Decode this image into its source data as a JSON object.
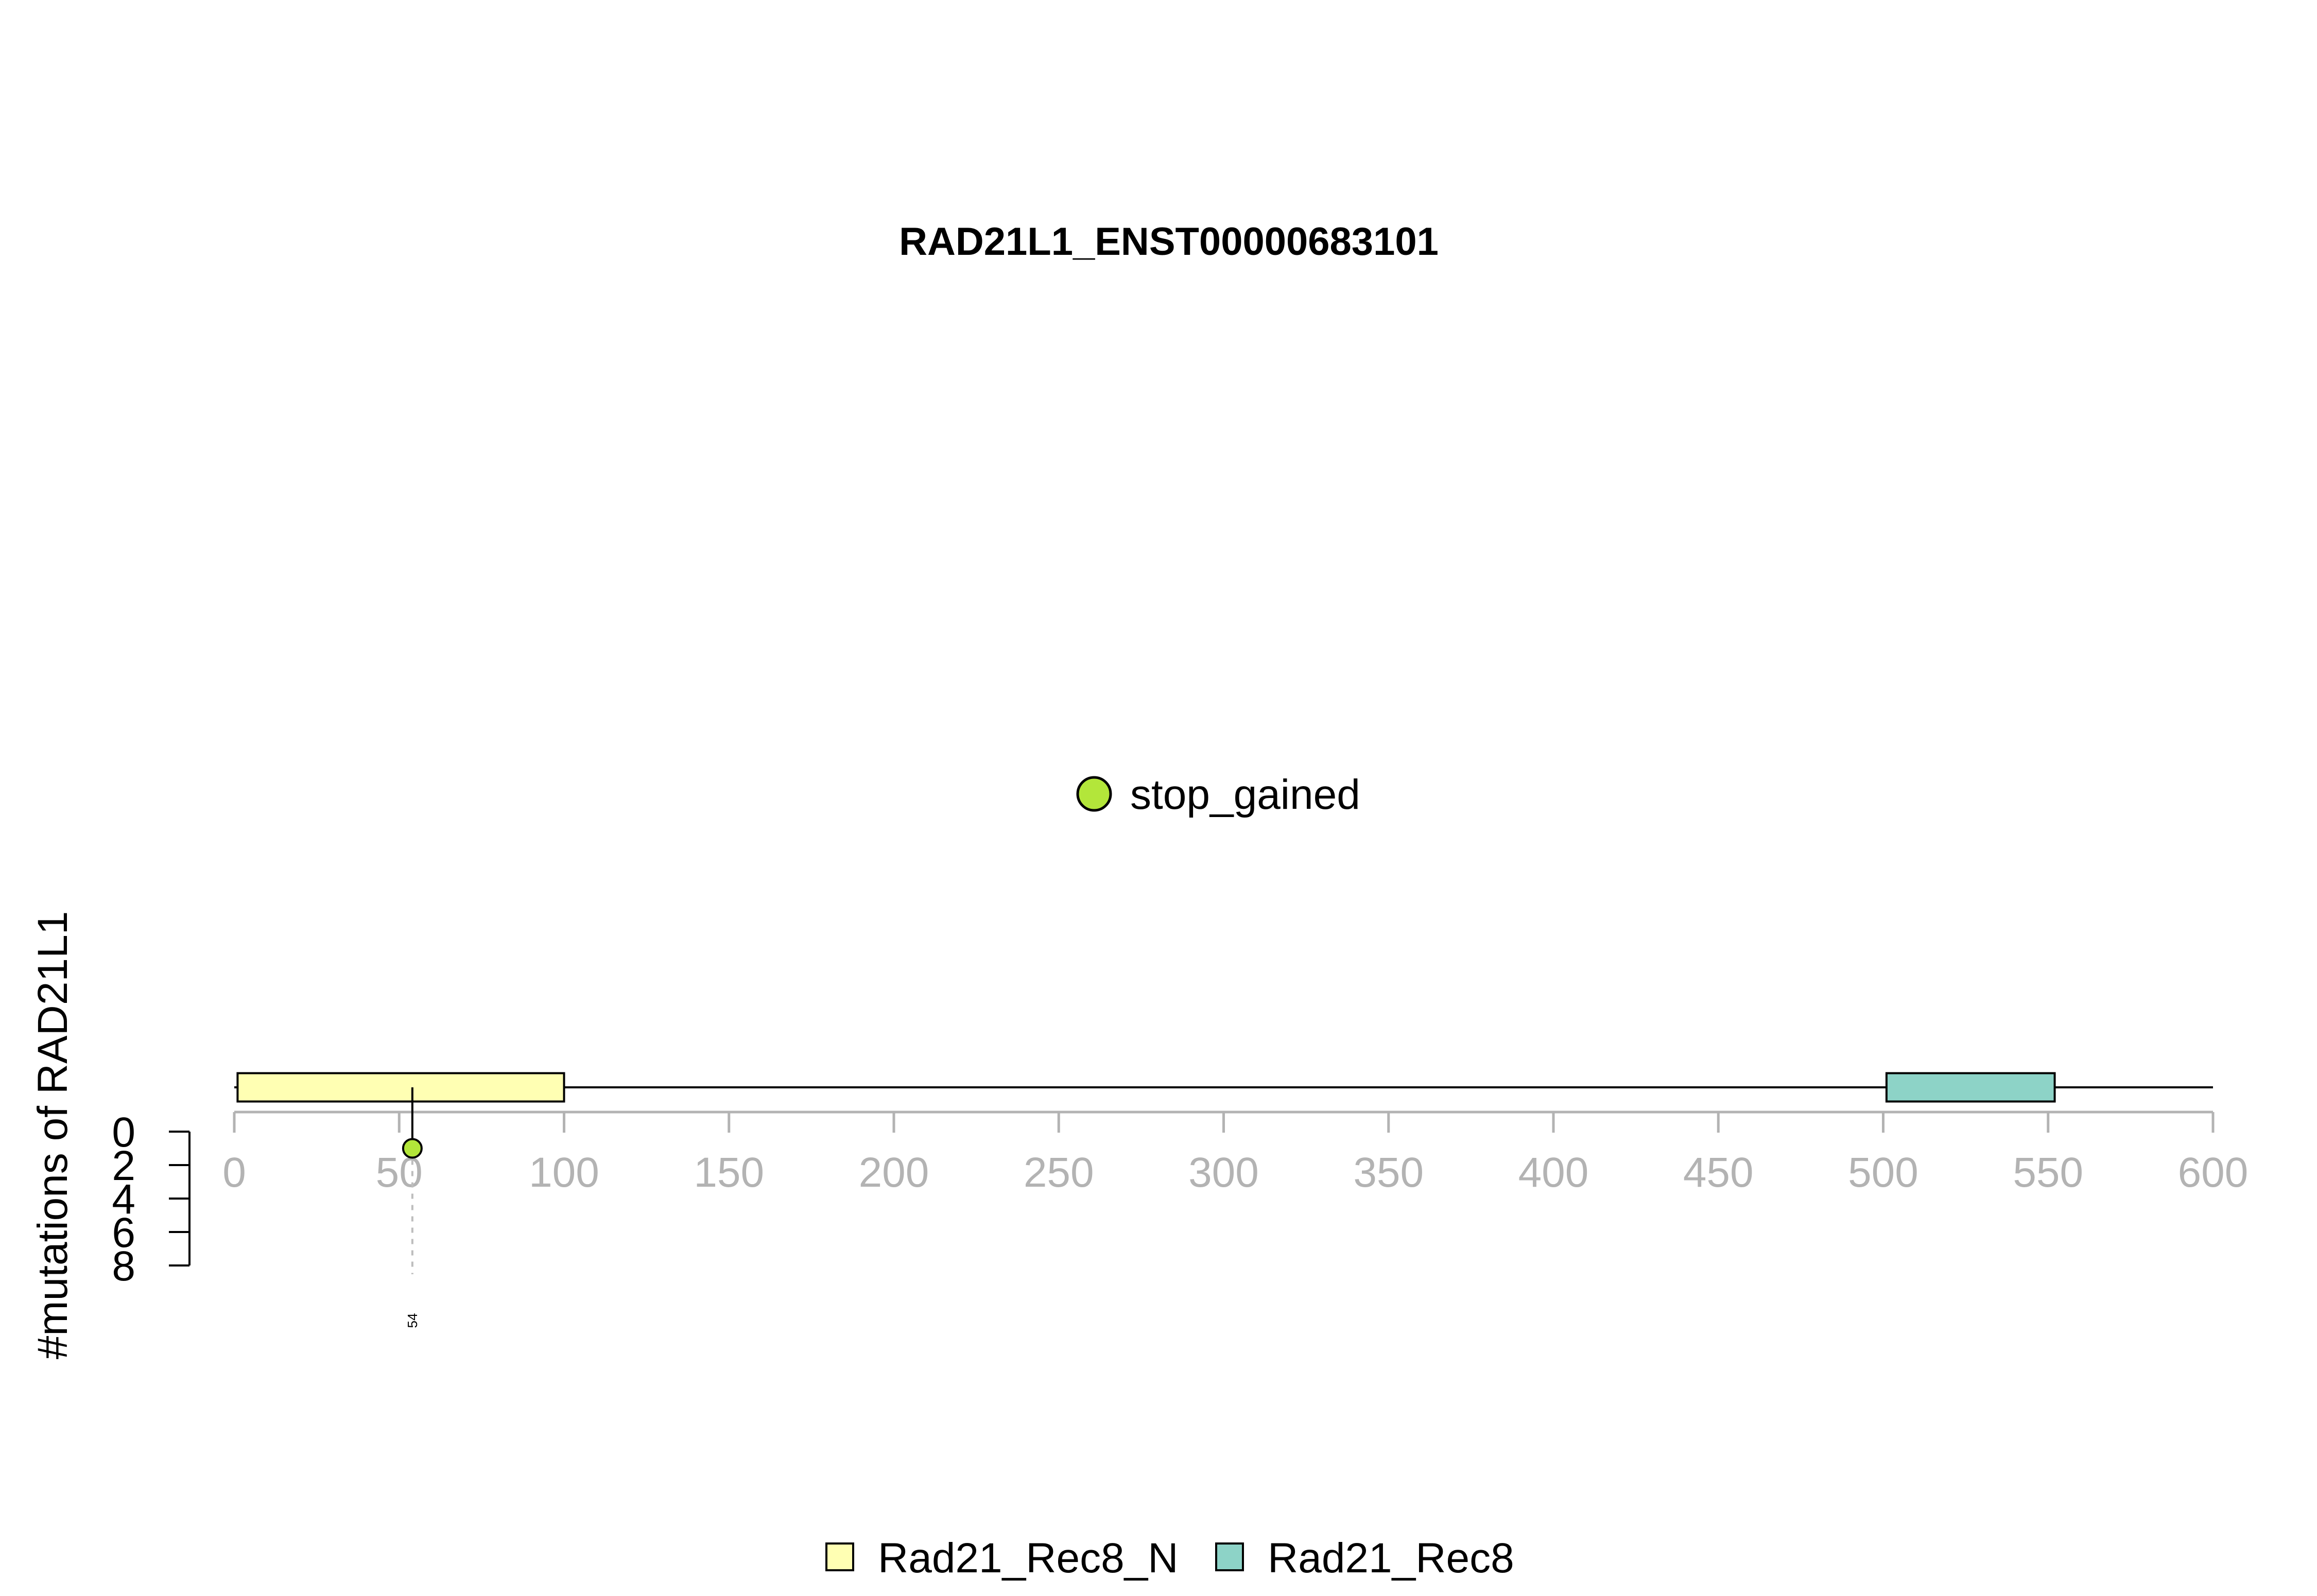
{
  "chart_data": {
    "type": "scatter",
    "title": "RAD21L1_ENST00000683101",
    "ylabel": "#mutations of RAD21L1",
    "xlim": [
      0,
      600
    ],
    "x_ticks": [
      0,
      50,
      100,
      150,
      200,
      250,
      300,
      350,
      400,
      450,
      500,
      550,
      600
    ],
    "ylim": [
      0,
      8
    ],
    "y_ticks": [
      0,
      2,
      4,
      6,
      8
    ],
    "y_axis_inverted": true,
    "protein_length": 600,
    "domains": [
      {
        "name": "Rad21_Rec8_N",
        "start": 1,
        "end": 100,
        "color": "#ffffb3"
      },
      {
        "name": "Rad21_Rec8",
        "start": 501,
        "end": 552,
        "color": "#8dd3c7"
      }
    ],
    "mutations": [
      {
        "position": 54,
        "count": 1,
        "type": "stop_gained",
        "label": "54",
        "color": "#b3e63a"
      }
    ],
    "mutation_legend": [
      {
        "name": "stop_gained",
        "color": "#b3e63a"
      }
    ],
    "domain_legend": [
      {
        "name": "Rad21_Rec8_N",
        "color": "#ffffb3"
      },
      {
        "name": "Rad21_Rec8",
        "color": "#8dd3c7"
      }
    ]
  }
}
